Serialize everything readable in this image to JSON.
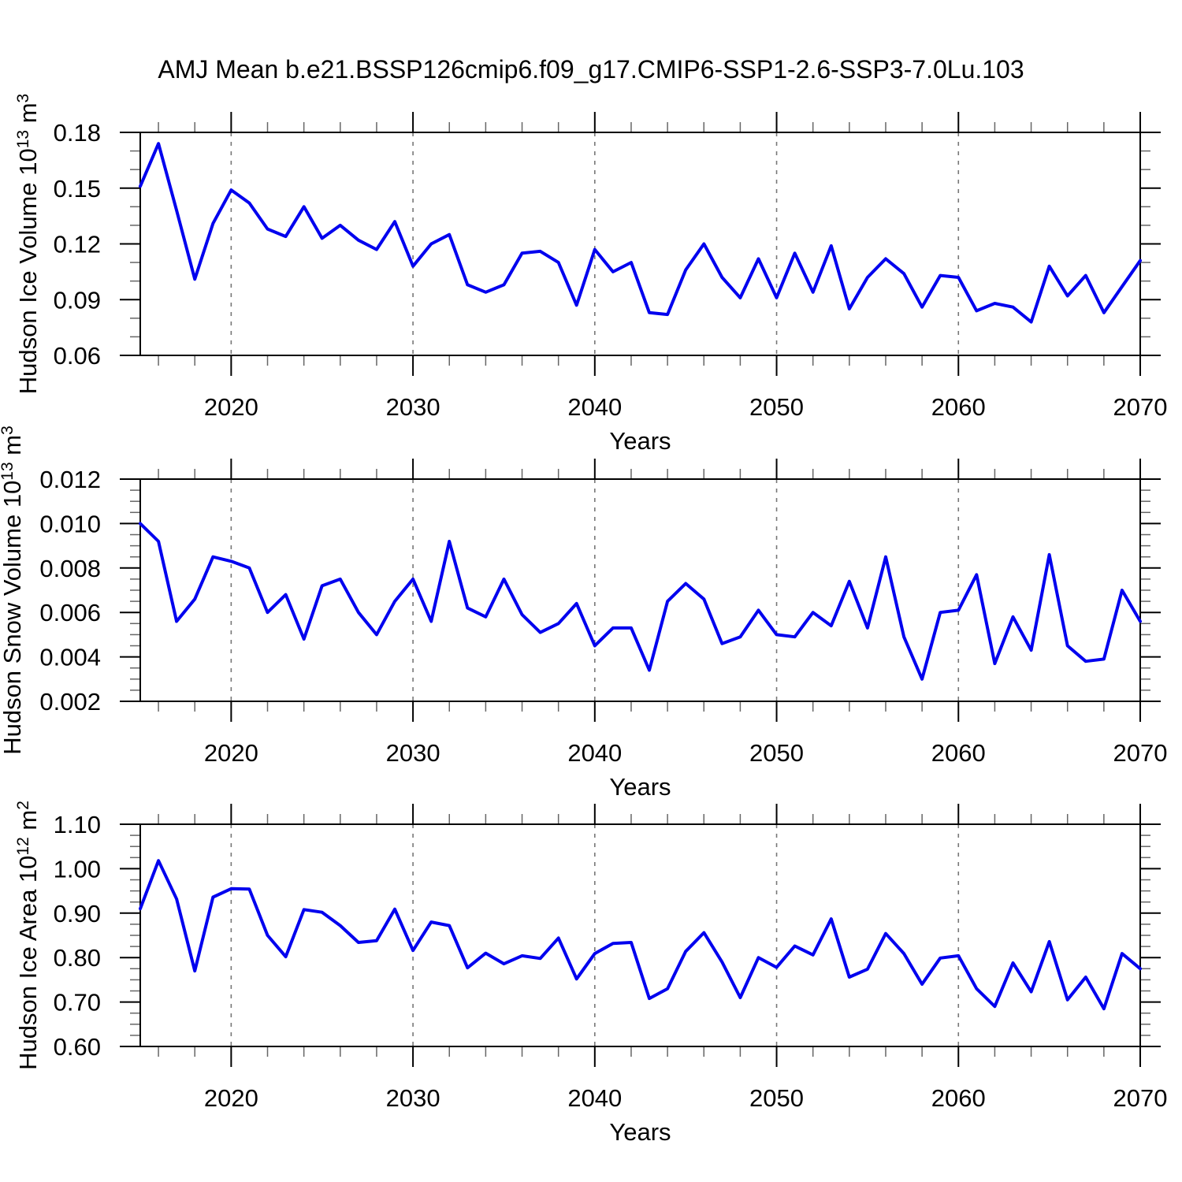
{
  "title": "AMJ Mean b.e21.BSSP126cmip6.f09_g17.CMIP6-SSP1-2.6-SSP3-7.0Lu.103",
  "colors": {
    "line": "#0000EE",
    "grid": "#777777",
    "frame": "#000000",
    "minor_tick": "#666666",
    "background": "#ffffff"
  },
  "chart_data": [
    {
      "type": "line",
      "name": "hudson-ice-volume",
      "xlabel": "Years",
      "ylabel_parts": [
        {
          "text": "Hudson Ice Volume 10"
        },
        {
          "sup": "13"
        },
        {
          "text": " m"
        },
        {
          "sup": "3"
        }
      ],
      "xlim": [
        2015,
        2070
      ],
      "ylim": [
        0.06,
        0.18
      ],
      "xticks": [
        2020,
        2030,
        2040,
        2050,
        2060,
        2070
      ],
      "xtick_labels": [
        "2020",
        "2030",
        "2040",
        "2050",
        "2060",
        "2070"
      ],
      "xtick_minor_step": 2,
      "yticks": [
        0.06,
        0.09,
        0.12,
        0.15,
        0.18
      ],
      "ytick_labels": [
        "0.06",
        "0.09",
        "0.12",
        "0.15",
        "0.18"
      ],
      "ytick_minor_step": 0.01,
      "grid_lines_x": [
        2020,
        2030,
        2040,
        2050,
        2060
      ],
      "grid_style": "dashed",
      "legend": "none",
      "x": [
        2015,
        2016,
        2017,
        2018,
        2019,
        2020,
        2021,
        2022,
        2023,
        2024,
        2025,
        2026,
        2027,
        2028,
        2029,
        2030,
        2031,
        2032,
        2033,
        2034,
        2035,
        2036,
        2037,
        2038,
        2039,
        2040,
        2041,
        2042,
        2043,
        2044,
        2045,
        2046,
        2047,
        2048,
        2049,
        2050,
        2051,
        2052,
        2053,
        2054,
        2055,
        2056,
        2057,
        2058,
        2059,
        2060,
        2061,
        2062,
        2063,
        2064,
        2065,
        2066,
        2067,
        2068,
        2069,
        2070
      ],
      "values": [
        0.151,
        0.174,
        0.138,
        0.101,
        0.131,
        0.149,
        0.142,
        0.128,
        0.124,
        0.14,
        0.123,
        0.13,
        0.122,
        0.117,
        0.132,
        0.108,
        0.12,
        0.125,
        0.098,
        0.094,
        0.098,
        0.115,
        0.116,
        0.11,
        0.087,
        0.117,
        0.105,
        0.11,
        0.083,
        0.082,
        0.106,
        0.12,
        0.102,
        0.091,
        0.112,
        0.091,
        0.115,
        0.094,
        0.119,
        0.085,
        0.102,
        0.112,
        0.104,
        0.086,
        0.103,
        0.102,
        0.084,
        0.088,
        0.086,
        0.078,
        0.108,
        0.092,
        0.103,
        0.083,
        0.097,
        0.111
      ]
    },
    {
      "type": "line",
      "name": "hudson-snow-volume",
      "xlabel": "Years",
      "ylabel_parts": [
        {
          "text": "Hudson Snow Volume 10"
        },
        {
          "sup": "13"
        },
        {
          "text": " m"
        },
        {
          "sup": "3"
        }
      ],
      "xlim": [
        2015,
        2070
      ],
      "ylim": [
        0.002,
        0.012
      ],
      "xticks": [
        2020,
        2030,
        2040,
        2050,
        2060,
        2070
      ],
      "xtick_labels": [
        "2020",
        "2030",
        "2040",
        "2050",
        "2060",
        "2070"
      ],
      "xtick_minor_step": 2,
      "yticks": [
        0.002,
        0.004,
        0.006,
        0.008,
        0.01,
        0.012
      ],
      "ytick_labels": [
        "0.002",
        "0.004",
        "0.006",
        "0.008",
        "0.010",
        "0.012"
      ],
      "ytick_minor_step": 0.0005,
      "grid_lines_x": [
        2020,
        2030,
        2040,
        2050,
        2060
      ],
      "grid_style": "dashed",
      "legend": "none",
      "x": [
        2015,
        2016,
        2017,
        2018,
        2019,
        2020,
        2021,
        2022,
        2023,
        2024,
        2025,
        2026,
        2027,
        2028,
        2029,
        2030,
        2031,
        2032,
        2033,
        2034,
        2035,
        2036,
        2037,
        2038,
        2039,
        2040,
        2041,
        2042,
        2043,
        2044,
        2045,
        2046,
        2047,
        2048,
        2049,
        2050,
        2051,
        2052,
        2053,
        2054,
        2055,
        2056,
        2057,
        2058,
        2059,
        2060,
        2061,
        2062,
        2063,
        2064,
        2065,
        2066,
        2067,
        2068,
        2069,
        2070
      ],
      "values": [
        0.01,
        0.0092,
        0.0056,
        0.0066,
        0.0085,
        0.0083,
        0.008,
        0.006,
        0.0068,
        0.0048,
        0.0072,
        0.0075,
        0.006,
        0.005,
        0.0065,
        0.0075,
        0.0056,
        0.0092,
        0.0062,
        0.0058,
        0.0075,
        0.0059,
        0.0051,
        0.0055,
        0.0064,
        0.0045,
        0.0053,
        0.0053,
        0.0034,
        0.0065,
        0.0073,
        0.0066,
        0.0046,
        0.0049,
        0.0061,
        0.005,
        0.0049,
        0.006,
        0.0054,
        0.0074,
        0.0053,
        0.0085,
        0.0049,
        0.003,
        0.006,
        0.0061,
        0.0077,
        0.0037,
        0.0058,
        0.0043,
        0.0086,
        0.0045,
        0.0038,
        0.0039,
        0.007,
        0.0056
      ]
    },
    {
      "type": "line",
      "name": "hudson-ice-area",
      "xlabel": "Years",
      "ylabel_parts": [
        {
          "text": "Hudson Ice Area 10"
        },
        {
          "sup": "12"
        },
        {
          "text": " m"
        },
        {
          "sup": "2"
        }
      ],
      "xlim": [
        2015,
        2070
      ],
      "ylim": [
        0.6,
        1.1
      ],
      "xticks": [
        2020,
        2030,
        2040,
        2050,
        2060,
        2070
      ],
      "xtick_labels": [
        "2020",
        "2030",
        "2040",
        "2050",
        "2060",
        "2070"
      ],
      "xtick_minor_step": 2,
      "yticks": [
        0.6,
        0.7,
        0.8,
        0.9,
        1.0,
        1.1
      ],
      "ytick_labels": [
        "0.60",
        "0.70",
        "0.80",
        "0.90",
        "1.00",
        "1.10"
      ],
      "ytick_minor_step": 0.025,
      "grid_lines_x": [
        2020,
        2030,
        2040,
        2050,
        2060
      ],
      "grid_style": "dashed",
      "legend": "none",
      "x": [
        2015,
        2016,
        2017,
        2018,
        2019,
        2020,
        2021,
        2022,
        2023,
        2024,
        2025,
        2026,
        2027,
        2028,
        2029,
        2030,
        2031,
        2032,
        2033,
        2034,
        2035,
        2036,
        2037,
        2038,
        2039,
        2040,
        2041,
        2042,
        2043,
        2044,
        2045,
        2046,
        2047,
        2048,
        2049,
        2050,
        2051,
        2052,
        2053,
        2054,
        2055,
        2056,
        2057,
        2058,
        2059,
        2060,
        2061,
        2062,
        2063,
        2064,
        2065,
        2066,
        2067,
        2068,
        2069,
        2070
      ],
      "values": [
        0.91,
        1.018,
        0.932,
        0.77,
        0.936,
        0.955,
        0.954,
        0.85,
        0.802,
        0.908,
        0.902,
        0.872,
        0.834,
        0.838,
        0.909,
        0.816,
        0.88,
        0.872,
        0.777,
        0.81,
        0.786,
        0.804,
        0.798,
        0.844,
        0.752,
        0.809,
        0.832,
        0.834,
        0.708,
        0.73,
        0.814,
        0.856,
        0.79,
        0.71,
        0.8,
        0.778,
        0.826,
        0.806,
        0.887,
        0.756,
        0.774,
        0.854,
        0.809,
        0.74,
        0.799,
        0.804,
        0.73,
        0.69,
        0.788,
        0.723,
        0.836,
        0.705,
        0.756,
        0.685,
        0.809,
        0.775
      ]
    }
  ]
}
